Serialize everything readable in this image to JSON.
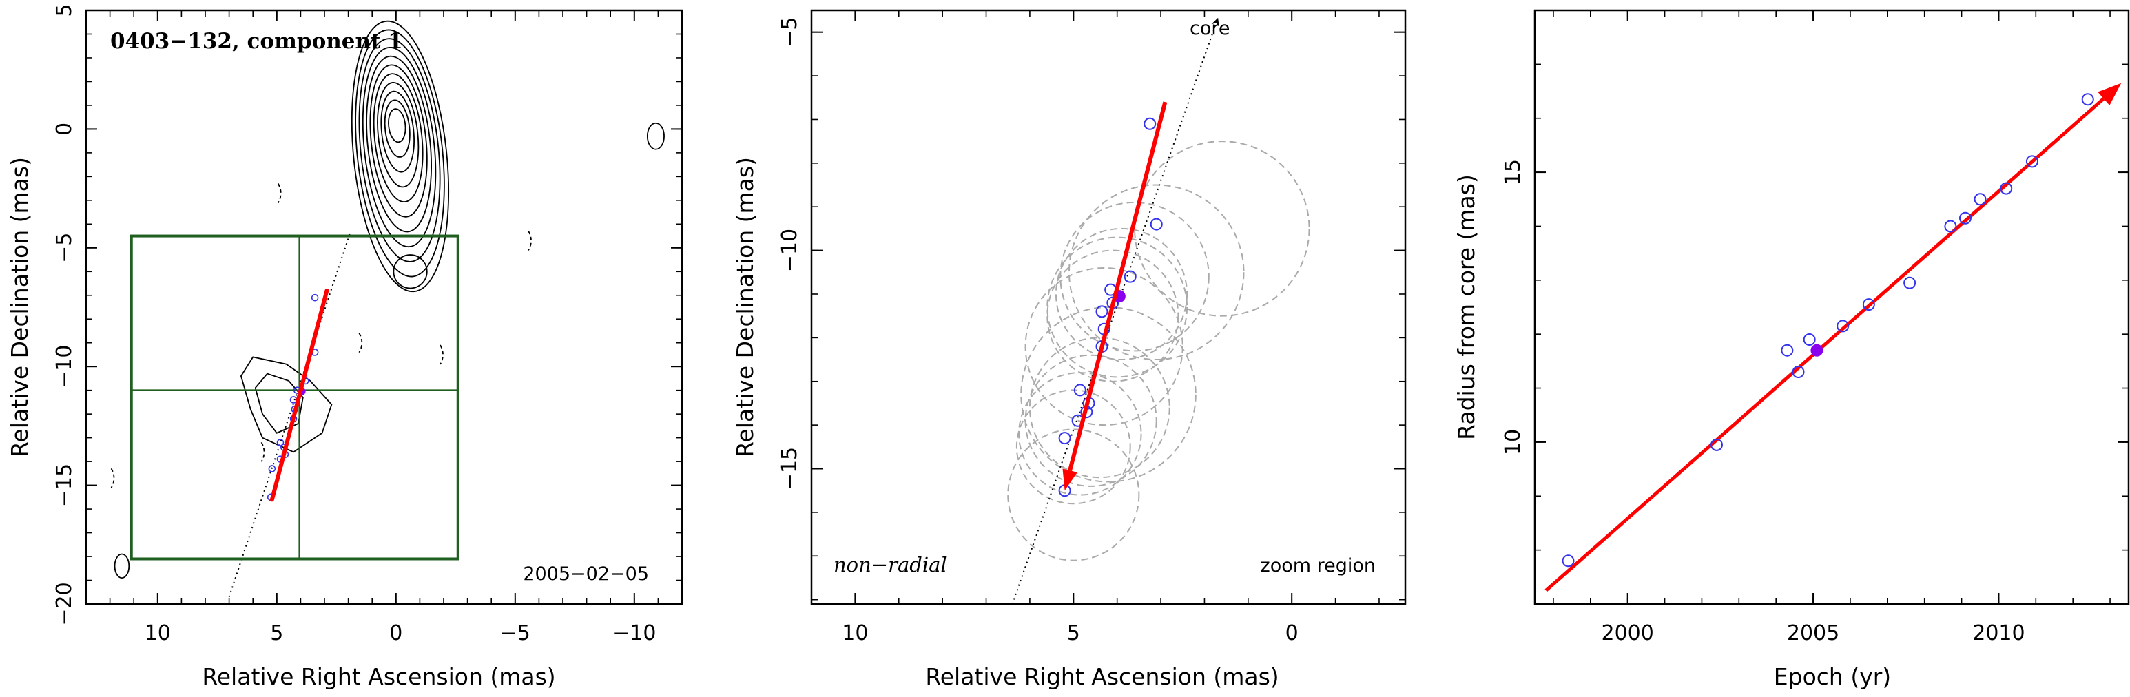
{
  "chart_data": [
    {
      "type": "contour",
      "title": "0403−132, component 1",
      "xlabel": "Relative Right Ascension (mas)",
      "ylabel": "Relative Declination (mas)",
      "xlim": [
        13,
        -12
      ],
      "ylim": [
        -20,
        5
      ],
      "xticks": [
        10,
        5,
        0,
        -5,
        -10
      ],
      "yticks": [
        5,
        0,
        -5,
        -10,
        -15,
        -20
      ],
      "xtick_labels": [
        "10",
        "5",
        "0",
        "−5",
        "−10"
      ],
      "ytick_labels": [
        "5",
        "0",
        "−5",
        "−10",
        "−15",
        "−20"
      ],
      "date_label": "2005−02−05",
      "core": {
        "x": 0,
        "y": 0
      },
      "zoom_box": {
        "x_min": -2.6,
        "x_max": 11.1,
        "y_min": -18.1,
        "y_max": -4.5
      },
      "zoom_crosshair": {
        "x": 4.05,
        "y": -11.0
      },
      "trajectory_line": {
        "x0": 7.0,
        "y0": -19.7,
        "x1": 1.9,
        "y1": -4.3
      },
      "motion_vector": {
        "x0": 5.2,
        "y0": -15.6,
        "x1": 2.9,
        "y1": -6.8
      },
      "component_positions": [
        {
          "x": 3.4,
          "y": -7.1
        },
        {
          "x": 3.4,
          "y": -9.4
        },
        {
          "x": 3.8,
          "y": -10.6
        },
        {
          "x": 4.15,
          "y": -11.0
        },
        {
          "x": 4.3,
          "y": -11.4
        },
        {
          "x": 4.25,
          "y": -11.8
        },
        {
          "x": 4.3,
          "y": -12.2
        },
        {
          "x": 4.85,
          "y": -13.2
        },
        {
          "x": 4.7,
          "y": -13.4
        },
        {
          "x": 4.65,
          "y": -13.7
        },
        {
          "x": 4.85,
          "y": -13.9
        },
        {
          "x": 5.2,
          "y": -14.3
        },
        {
          "x": 5.25,
          "y": -15.5
        }
      ],
      "highlight_position": {
        "x": 3.95,
        "y": -11.05
      }
    },
    {
      "type": "scatter",
      "xlabel": "Relative Right Ascension (mas)",
      "ylabel": "Relative Declination (mas)",
      "xlim": [
        11,
        -2.6
      ],
      "ylim": [
        -18.1,
        -4.5
      ],
      "xticks": [
        10,
        5,
        0
      ],
      "yticks": [
        -5,
        -10,
        -15
      ],
      "xtick_labels": [
        "10",
        "5",
        "0"
      ],
      "ytick_labels": [
        "−5",
        "−10",
        "−15"
      ],
      "core_label": "core",
      "left_note": "non−radial",
      "right_note": "zoom region",
      "trajectory_line": {
        "x0": 6.4,
        "y0": -18.1,
        "x1": 1.7,
        "y1": -4.7
      },
      "motion_vector": {
        "x0": 5.2,
        "y0": -15.5,
        "x1": 2.9,
        "y1": -6.6
      },
      "points": [
        {
          "x": 3.25,
          "y": -7.1
        },
        {
          "x": 3.1,
          "y": -9.4
        },
        {
          "x": 3.7,
          "y": -10.6
        },
        {
          "x": 4.15,
          "y": -10.9
        },
        {
          "x": 4.1,
          "y": -11.2
        },
        {
          "x": 4.35,
          "y": -11.4
        },
        {
          "x": 4.3,
          "y": -11.8
        },
        {
          "x": 4.35,
          "y": -12.2
        },
        {
          "x": 4.85,
          "y": -13.2
        },
        {
          "x": 4.65,
          "y": -13.5
        },
        {
          "x": 4.7,
          "y": -13.7
        },
        {
          "x": 4.9,
          "y": -13.9
        },
        {
          "x": 5.2,
          "y": -14.3
        },
        {
          "x": 5.2,
          "y": -15.5
        }
      ],
      "highlight_point": {
        "x": 3.95,
        "y": -11.05
      },
      "uncertainty_circles": [
        {
          "x": 1.6,
          "y": -9.5,
          "r": 2.0
        },
        {
          "x": 3.1,
          "y": -10.5,
          "r": 2.0
        },
        {
          "x": 3.6,
          "y": -10.6,
          "r": 1.7
        },
        {
          "x": 3.9,
          "y": -11.0,
          "r": 1.5
        },
        {
          "x": 4.0,
          "y": -11.3,
          "r": 1.6
        },
        {
          "x": 4.1,
          "y": -11.5,
          "r": 1.5
        },
        {
          "x": 4.3,
          "y": -12.2,
          "r": 1.8
        },
        {
          "x": 4.2,
          "y": -13.3,
          "r": 2.0
        },
        {
          "x": 4.4,
          "y": -13.6,
          "r": 1.6
        },
        {
          "x": 4.6,
          "y": -13.9,
          "r": 1.5
        },
        {
          "x": 4.85,
          "y": -14.2,
          "r": 1.4
        },
        {
          "x": 5.0,
          "y": -14.5,
          "r": 1.3
        },
        {
          "x": 5.0,
          "y": -15.6,
          "r": 1.5
        }
      ]
    },
    {
      "type": "scatter",
      "xlabel": "Epoch (yr)",
      "ylabel": "Radius from core (mas)",
      "xlim": [
        1997.5,
        2013.5
      ],
      "ylim": [
        7.0,
        18.0
      ],
      "xticks": [
        2000,
        2005,
        2010
      ],
      "yticks": [
        10,
        15
      ],
      "xtick_labels": [
        "2000",
        "2005",
        "2010"
      ],
      "ytick_labels": [
        "10",
        "15"
      ],
      "fit_line": {
        "x0": 1997.8,
        "y0": 7.25,
        "x1": 2013.1,
        "y1": 16.55
      },
      "arrow_head": {
        "x": 2013.3,
        "y": 16.65
      },
      "points": [
        {
          "x": 1998.4,
          "y": 7.8
        },
        {
          "x": 2002.4,
          "y": 9.95
        },
        {
          "x": 2004.3,
          "y": 11.7
        },
        {
          "x": 2004.6,
          "y": 11.3
        },
        {
          "x": 2004.9,
          "y": 11.9
        },
        {
          "x": 2005.8,
          "y": 12.15
        },
        {
          "x": 2006.5,
          "y": 12.55
        },
        {
          "x": 2007.6,
          "y": 12.95
        },
        {
          "x": 2008.7,
          "y": 14.0
        },
        {
          "x": 2009.1,
          "y": 14.15
        },
        {
          "x": 2009.5,
          "y": 14.5
        },
        {
          "x": 2010.2,
          "y": 14.7
        },
        {
          "x": 2010.9,
          "y": 15.2
        },
        {
          "x": 2012.4,
          "y": 16.35
        }
      ],
      "highlight_point": {
        "x": 2005.1,
        "y": 11.7
      }
    }
  ],
  "colors": {
    "axis": "#000000",
    "vector": "#ff0000",
    "point": "#3333ee",
    "highlight": "#8800ee",
    "zoom_box": "#1f5f1f",
    "circle": "#aaaaaa",
    "contour": "#000000"
  }
}
